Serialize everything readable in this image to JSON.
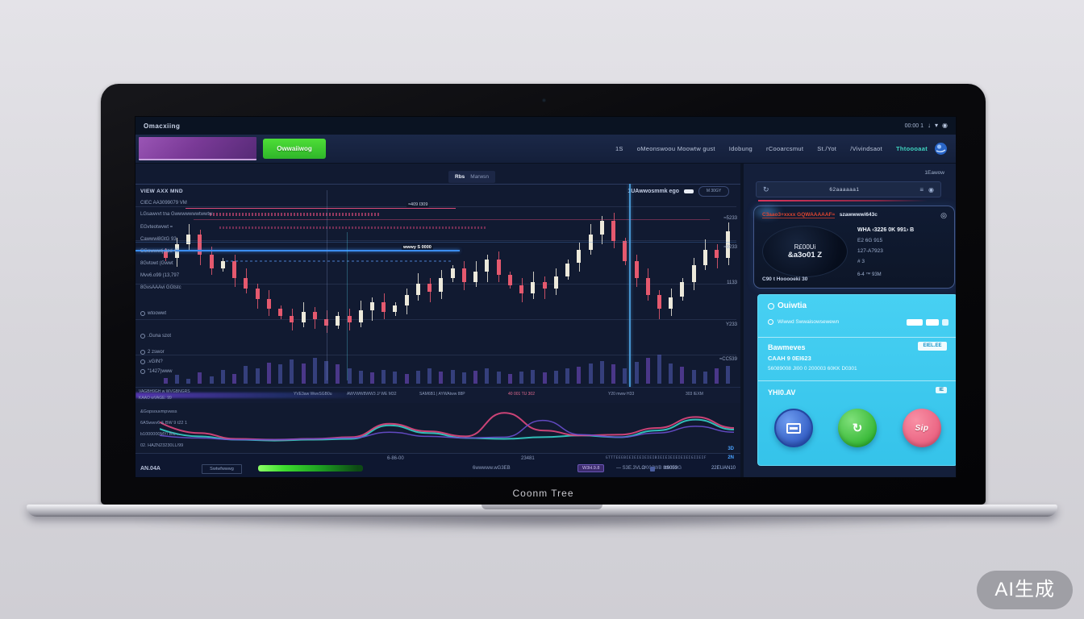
{
  "watermark": "AI生成",
  "laptop": {
    "brand": "Coonm Tree"
  },
  "colors": {
    "accent_teal": "#3fd4c0",
    "green_button": "#3bd02e",
    "purple_block": "#8a4aa8",
    "cyan_card": "#3cc9ef",
    "candle_up": "#ece9db",
    "candle_down": "#e5596e",
    "blue_line": "#3b8ef0",
    "pink_line": "#d84a78"
  },
  "menubar": {
    "title": "Omacxiing",
    "status": "00:00  1",
    "icons": [
      "arrow-down-icon",
      "wifi-icon",
      "power-icon"
    ]
  },
  "navbar": {
    "cta": "Owwaiiwog",
    "items": [
      {
        "t": "1S"
      },
      {
        "t": "oMeonswoou Moowtw gust"
      },
      {
        "t": "Idobung"
      },
      {
        "t": "rCooarcsmut"
      },
      {
        "t": "St./Yot"
      },
      {
        "t": "/Vivindsaot"
      },
      {
        "t": "Thtoooaat",
        "accent": true
      }
    ]
  },
  "chart": {
    "tab_a": "Rbs",
    "tab_b": "Marwsn",
    "overlay_label": "1UAwwosmmk ego",
    "overlay_button": "M 30GY",
    "float_label_1": "≈409  I309",
    "float_label_2": "wwwy S 0000",
    "left_rows": [
      {
        "t": "VIEW AXX MND",
        "b": true
      },
      {
        "t": "CIEC AA3099079 VM"
      },
      {
        "t": "LGsawvvt tna   Gwwwwwwwtwwtw"
      },
      {
        "t": "EGvteotwvwt ="
      },
      {
        "t": "Cawwwi8GtG  93"
      },
      {
        "t": "CGowwwtj 9zd  42"
      },
      {
        "t": "8Gvtowt  (Gwwt"
      },
      {
        "t": "Mvv6.o99 (13,797"
      },
      {
        "t": "8GvsAAAvi GGtstc"
      },
      {
        "t": "wtoowwt",
        "i": true
      },
      {
        "t": ".Guna szot",
        "i": true
      },
      {
        "t": "2 zswor",
        "i": true
      },
      {
        "t": ".vGIN?",
        "i": true
      },
      {
        "t": "\"1427)www",
        "i": true
      }
    ]
  },
  "mid_labels": [
    {
      "t": "VAGBH9GH w WVGBNGRS"
    },
    {
      "t": "KAAO wVAGE: 99"
    },
    {
      "t": "YVE3aw WwvSGB0u"
    },
    {
      "t": "AWVWW8WW3 J/ WE M32"
    },
    {
      "t": "SAM6B1 | AYWAtww 88P"
    },
    {
      "t": "40 001 TU 302",
      "pink": true
    },
    {
      "t": "Y20 mww H33"
    },
    {
      "t": "303 IEXM"
    }
  ],
  "indicator_labels": [
    "&Gopsouvmpvwss",
    "6ASwwv6 & BW 9 t22 1",
    "b1000000MY/ Bw.....",
    "02. HAZN23230LL/99"
  ],
  "bottom_bar": {
    "sym": "AN.04A",
    "chip": "Swtwfwwwg",
    "t1": "6wwwww.wG3EB",
    "badge": "W3H.9.8",
    "t2": "2/00JWB  8t6309G",
    "t3": "— S3E.3VLO",
    "t4": "tt9053",
    "t5": "22EUAN10",
    "r1a": "6-86-00",
    "r1b": "23481",
    "ticks": "GTTTEEEBIEIEIEIEIEIBIEIEIEIEIEIEIGIIEIF",
    "r1c": "2N",
    "r1d": "3D"
  },
  "right_panel": {
    "top_label": "1Eawow",
    "search": {
      "text": "62aaaaaa1"
    },
    "card": {
      "header_red": "C3aao3+xxxx GQWAAAAAF≈",
      "header_white": "szawwwwi643c",
      "avatar_line1": "R£00Ui",
      "avatar_line2": "&a3o01 Z",
      "rows": [
        "WHA ‹3226 0K 991›  B",
        "E2 6G 915",
        "127-A7923",
        "# 3"
      ],
      "footer_left": "C90 t Hooooeki 30",
      "footer_right": "6-4 ™ 93M"
    },
    "cyan_card": {
      "title": "Ouiwtia",
      "subtitle": "Wiwwd Swwaisowsewewn",
      "sec_title": "Bawmeves",
      "sec_line1": "CAAH 9 0EI623",
      "sec_line2": "56089008 JI00  0 200003 60KK  D0301",
      "badge": "EIEL.EE",
      "actions_title": "YHI0.AV",
      "actions_right": "IE",
      "btn3_label": "Sip"
    }
  },
  "chart_data": {
    "type": "candlestick",
    "title": "",
    "price_labels": [
      "≈5233",
      "≈9233",
      "1133",
      "Y233",
      "≈CC539"
    ],
    "closes": [
      58,
      66,
      72,
      60,
      52,
      56,
      46,
      40,
      34,
      28,
      24,
      20,
      26,
      22,
      18,
      24,
      20,
      27,
      32,
      26,
      30,
      36,
      43,
      38,
      46,
      52,
      44,
      50,
      57,
      48,
      42,
      37,
      44,
      40,
      47,
      55,
      63,
      72,
      80,
      68,
      56,
      46,
      36,
      28,
      35,
      44,
      54,
      63,
      58,
      74
    ],
    "volumes": [
      12,
      18,
      10,
      22,
      15,
      28,
      20,
      35,
      30,
      42,
      38,
      48,
      40,
      52,
      45,
      38,
      30,
      26,
      22,
      28,
      24,
      20,
      26,
      30,
      24,
      28,
      22,
      26,
      30,
      24,
      20,
      24,
      28,
      22,
      26,
      30,
      34,
      40,
      46,
      38,
      30,
      44,
      52,
      58,
      40,
      34,
      28,
      24,
      30,
      36
    ],
    "indicator": {
      "series": [
        {
          "name": "teal",
          "color": "#35d0c8",
          "values": [
            50,
            32,
            24,
            22,
            24,
            26,
            58,
            40,
            28,
            26,
            30,
            34,
            30,
            46,
            72,
            48
          ]
        },
        {
          "name": "pink",
          "color": "#e0487e",
          "values": [
            66,
            40,
            26,
            24,
            26,
            30,
            62,
            44,
            32,
            88,
            46,
            34,
            36,
            52,
            78,
            52
          ]
        },
        {
          "name": "purple",
          "color": "#6a4fd0",
          "values": [
            34,
            28,
            24,
            24,
            26,
            28,
            42,
            32,
            28,
            30,
            70,
            36,
            30,
            40,
            56,
            42
          ]
        }
      ]
    }
  }
}
